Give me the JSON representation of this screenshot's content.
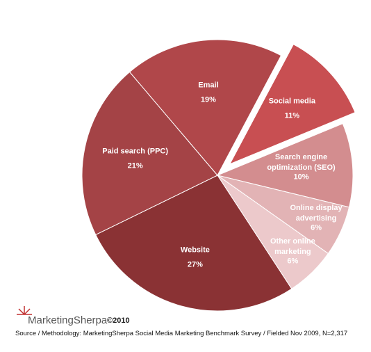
{
  "chart_data": {
    "type": "pie",
    "categories": [
      "Social media",
      "Search engine optimization (SEO)",
      "Online display advertising",
      "Other online marketing",
      "Website",
      "Paid search (PPC)",
      "Email"
    ],
    "values": [
      11,
      10,
      6,
      6,
      27,
      21,
      19
    ],
    "value_labels": [
      "11%",
      "10%",
      "6%",
      "6%",
      "27%",
      "21%",
      "19%"
    ],
    "colors": [
      "#c84f52",
      "#d38d8f",
      "#e2b3b5",
      "#ecc9cb",
      "#8a3234",
      "#a44346",
      "#b0474a"
    ],
    "exploded": "Social media"
  },
  "footer": {
    "brand": "MarketingSherpa",
    "copyright": "©2010",
    "source": "Source / Methodology: MarketingSherpa Social Media Marketing Benchmark Survey / Fielded Nov 2009, N=2,317"
  }
}
